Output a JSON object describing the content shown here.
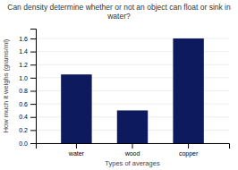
{
  "chart_data": {
    "type": "bar",
    "title": "Can density determine whether or not an object can float or sink in water?",
    "categories": [
      "water",
      "wood",
      "copper"
    ],
    "values": [
      1.05,
      0.5,
      1.6
    ],
    "color": "#0d1a5e",
    "xlabel": "Types of averages",
    "ylabel": "How much it weighs (grams/ml)",
    "ylim": [
      0,
      1.75
    ],
    "yticks": [
      {
        "value": 0,
        "label": "0.0"
      },
      0.2,
      0.4,
      0.6,
      0.8,
      {
        "value": 1.0,
        "label": "1.0"
      },
      1.2,
      1.4,
      1.6
    ],
    "grid": true
  }
}
